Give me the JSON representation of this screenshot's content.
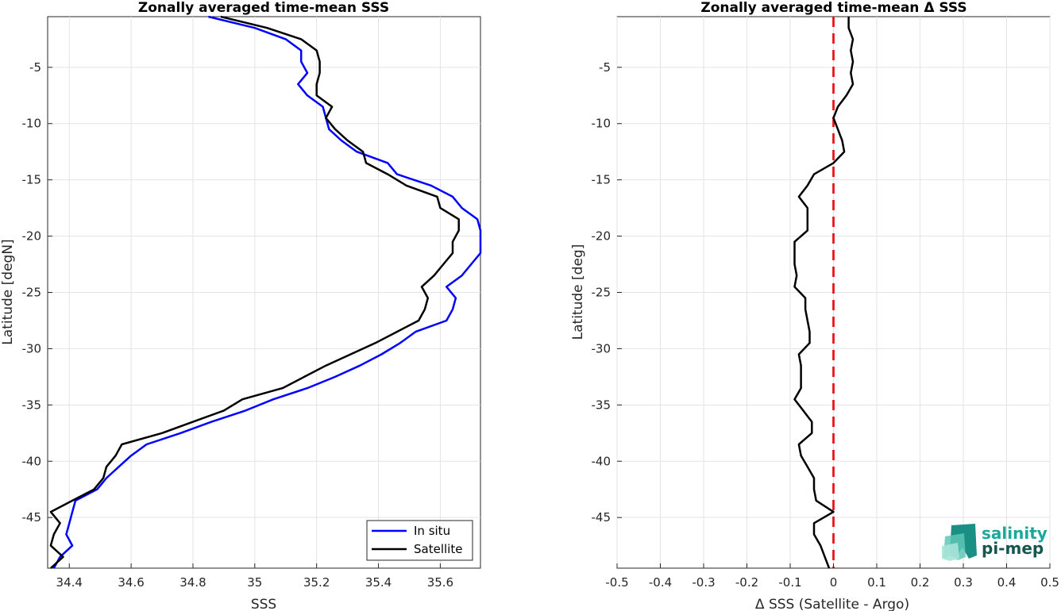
{
  "chart_data": [
    {
      "type": "line",
      "title": "Zonally averaged time-mean SSS",
      "xlabel": "SSS",
      "ylabel": "Latitude [degN]",
      "xlim": [
        34.33,
        35.73
      ],
      "ylim": [
        -49.5,
        -0.5
      ],
      "xticks": [
        "34.4",
        "34.6",
        "34.8",
        "35",
        "35.2",
        "35.4",
        "35.6"
      ],
      "xtick_values": [
        34.4,
        34.6,
        34.8,
        35.0,
        35.2,
        35.4,
        35.6
      ],
      "yticks": [
        "-5",
        "-10",
        "-15",
        "-20",
        "-25",
        "-30",
        "-35",
        "-40",
        "-45"
      ],
      "ytick_values": [
        -5,
        -10,
        -15,
        -20,
        -25,
        -30,
        -35,
        -40,
        -45
      ],
      "grid": true,
      "legend_position": "bottom-right",
      "latitudes": [
        -0.5,
        -1.5,
        -2.5,
        -3.5,
        -4.5,
        -5.5,
        -6.5,
        -7.5,
        -8.5,
        -9.5,
        -10.5,
        -11.5,
        -12.5,
        -13.5,
        -14.5,
        -15.5,
        -16.5,
        -17.5,
        -18.5,
        -19.5,
        -20.5,
        -21.5,
        -22.5,
        -23.5,
        -24.5,
        -25.5,
        -26.5,
        -27.5,
        -28.5,
        -29.5,
        -30.5,
        -31.5,
        -32.5,
        -33.5,
        -34.5,
        -35.5,
        -36.5,
        -37.5,
        -38.5,
        -39.5,
        -40.5,
        -41.5,
        -42.5,
        -43.5,
        -44.5,
        -45.5,
        -46.5,
        -47.5,
        -48.5,
        -49.5
      ],
      "series": [
        {
          "name": "In situ",
          "color": "#0000ff",
          "values": [
            34.85,
            35.0,
            35.1,
            35.15,
            35.15,
            35.17,
            35.14,
            35.17,
            35.22,
            35.23,
            35.24,
            35.28,
            35.33,
            35.43,
            35.46,
            35.57,
            35.64,
            35.67,
            35.72,
            35.73,
            35.73,
            35.73,
            35.7,
            35.67,
            35.62,
            35.65,
            35.64,
            35.62,
            35.52,
            35.47,
            35.41,
            35.34,
            35.26,
            35.17,
            35.06,
            34.97,
            34.86,
            34.76,
            34.65,
            34.6,
            34.56,
            34.52,
            34.49,
            34.42,
            34.41,
            34.4,
            34.39,
            34.41,
            34.37,
            34.35
          ]
        },
        {
          "name": "Satellite",
          "color": "#000000",
          "values": [
            34.89,
            35.04,
            35.15,
            35.2,
            35.21,
            35.21,
            35.2,
            35.2,
            35.25,
            35.23,
            35.26,
            35.3,
            35.35,
            35.36,
            35.43,
            35.49,
            35.59,
            35.6,
            35.66,
            35.66,
            35.64,
            35.64,
            35.61,
            35.58,
            35.54,
            35.56,
            35.55,
            35.53,
            35.46,
            35.39,
            35.31,
            35.23,
            35.16,
            35.09,
            34.96,
            34.9,
            34.8,
            34.7,
            34.57,
            34.55,
            34.52,
            34.51,
            34.48,
            34.41,
            34.34,
            34.37,
            34.35,
            34.34,
            34.38,
            34.34
          ]
        }
      ]
    },
    {
      "type": "line",
      "title": "Zonally averaged time-mean Δ SSS",
      "xlabel": "Δ SSS (Satellite - Argo)",
      "ylabel": "Latitude [deg]",
      "xlim": [
        -0.5,
        0.5
      ],
      "ylim": [
        -49.5,
        -0.5
      ],
      "xticks": [
        "-0.5",
        "-0.4",
        "-0.3",
        "-0.2",
        "-0.1",
        "0",
        "0.1",
        "0.2",
        "0.3",
        "0.4",
        "0.5"
      ],
      "xtick_values": [
        -0.5,
        -0.4,
        -0.3,
        -0.2,
        -0.1,
        0,
        0.1,
        0.2,
        0.3,
        0.4,
        0.5
      ],
      "yticks": [
        "-5",
        "-10",
        "-15",
        "-20",
        "-25",
        "-30",
        "-35",
        "-40",
        "-45"
      ],
      "ytick_values": [
        -5,
        -10,
        -15,
        -20,
        -25,
        -30,
        -35,
        -40,
        -45
      ],
      "grid": true,
      "zero_line": {
        "value": 0,
        "color": "#e8141b",
        "style": "dashed"
      },
      "latitudes": [
        -0.5,
        -1.5,
        -2.5,
        -3.5,
        -4.5,
        -5.5,
        -6.5,
        -7.5,
        -8.5,
        -9.5,
        -10.5,
        -11.5,
        -12.5,
        -13.5,
        -14.5,
        -15.5,
        -16.5,
        -17.5,
        -18.5,
        -19.5,
        -20.5,
        -21.5,
        -22.5,
        -23.5,
        -24.5,
        -25.5,
        -26.5,
        -27.5,
        -28.5,
        -29.5,
        -30.5,
        -31.5,
        -32.5,
        -33.5,
        -34.5,
        -35.5,
        -36.5,
        -37.5,
        -38.5,
        -39.5,
        -40.5,
        -41.5,
        -42.5,
        -43.5,
        -44.5,
        -45.5,
        -46.5,
        -47.5,
        -48.5,
        -49.5
      ],
      "series": [
        {
          "name": "",
          "color": "#000000",
          "values": [
            0.035,
            0.035,
            0.045,
            0.04,
            0.045,
            0.04,
            0.045,
            0.03,
            0.01,
            0.0,
            0.01,
            0.02,
            0.025,
            0.0,
            -0.045,
            -0.06,
            -0.08,
            -0.06,
            -0.06,
            -0.06,
            -0.09,
            -0.09,
            -0.09,
            -0.085,
            -0.09,
            -0.065,
            -0.065,
            -0.06,
            -0.055,
            -0.055,
            -0.08,
            -0.075,
            -0.075,
            -0.075,
            -0.09,
            -0.07,
            -0.05,
            -0.05,
            -0.08,
            -0.075,
            -0.06,
            -0.045,
            -0.045,
            -0.04,
            0.0,
            -0.045,
            -0.045,
            -0.03,
            -0.02,
            -0.01
          ]
        }
      ]
    }
  ],
  "legend": {
    "items": [
      "In situ",
      "Satellite"
    ]
  },
  "logo": {
    "line1": "salinity",
    "line2": "pi-mep"
  }
}
